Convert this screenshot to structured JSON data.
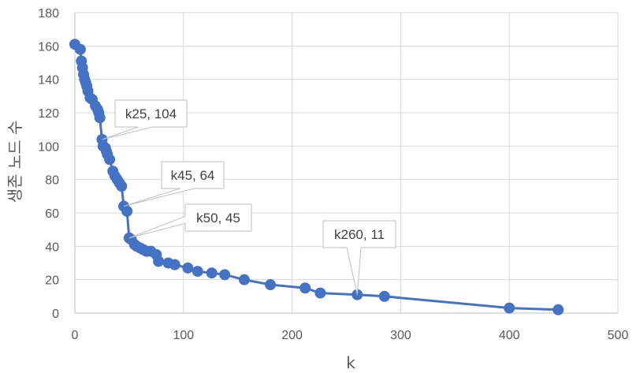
{
  "chart_data": {
    "type": "scatter",
    "xlabel": "k",
    "ylabel": "생존 노드 수",
    "xlim": [
      0,
      500
    ],
    "ylim": [
      0,
      180
    ],
    "xticks": [
      0,
      100,
      200,
      300,
      400,
      500
    ],
    "yticks": [
      0,
      20,
      40,
      60,
      80,
      100,
      120,
      140,
      160,
      180
    ],
    "grid": true,
    "legend": "none",
    "colors": {
      "series": "#4472C4",
      "grid": "#d9d9d9",
      "axis": "#bfbfbf",
      "callout_border": "#bfbfbf"
    },
    "series": [
      {
        "points": [
          [
            0,
            161
          ],
          [
            5,
            158
          ],
          [
            6,
            151
          ],
          [
            7,
            147
          ],
          [
            8,
            143
          ],
          [
            9,
            140
          ],
          [
            10,
            138
          ],
          [
            11,
            136
          ],
          [
            12,
            133
          ],
          [
            14,
            129
          ],
          [
            16,
            128
          ],
          [
            19,
            124
          ],
          [
            21,
            122
          ],
          [
            22,
            120
          ],
          [
            23,
            117
          ],
          [
            25,
            104
          ],
          [
            26,
            100
          ],
          [
            28,
            99
          ],
          [
            29,
            97
          ],
          [
            30,
            95
          ],
          [
            32,
            92
          ],
          [
            35,
            85
          ],
          [
            37,
            82
          ],
          [
            39,
            80
          ],
          [
            41,
            78
          ],
          [
            43,
            76
          ],
          [
            45,
            64
          ],
          [
            48,
            61
          ],
          [
            50,
            45
          ],
          [
            52,
            44
          ],
          [
            55,
            41
          ],
          [
            57,
            40
          ],
          [
            60,
            39
          ],
          [
            63,
            38
          ],
          [
            66,
            37
          ],
          [
            70,
            37
          ],
          [
            75,
            35
          ],
          [
            77,
            31
          ],
          [
            86,
            30
          ],
          [
            92,
            29
          ],
          [
            104,
            27
          ],
          [
            113,
            25
          ],
          [
            126,
            24
          ],
          [
            138,
            23
          ],
          [
            156,
            20
          ],
          [
            180,
            17
          ],
          [
            212,
            15
          ],
          [
            226,
            12
          ],
          [
            260,
            11
          ],
          [
            285,
            10
          ],
          [
            400,
            3
          ],
          [
            445,
            2
          ]
        ]
      }
    ],
    "annotations": [
      {
        "label": "k25, 104",
        "x": 25,
        "y": 104
      },
      {
        "label": "k45, 64",
        "x": 45,
        "y": 64
      },
      {
        "label": "k50, 45",
        "x": 50,
        "y": 45
      },
      {
        "label": "k260, 11",
        "x": 260,
        "y": 11
      }
    ]
  }
}
